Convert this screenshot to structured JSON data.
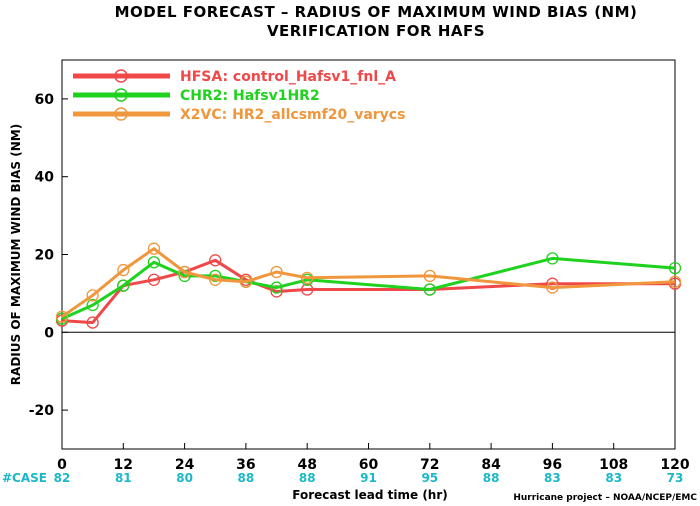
{
  "chart_data": {
    "type": "line",
    "title": "MODEL FORECAST – RADIUS OF MAXIMUM WIND BIAS (NM)",
    "subtitle": "VERIFICATION FOR HAFS",
    "xlabel": "Forecast lead time (hr)",
    "ylabel": "RADIUS OF MAXIMUM WIND BIAS (NM)",
    "xlim": [
      0,
      120
    ],
    "ylim": [
      -30,
      70
    ],
    "x_ticks": [
      0,
      12,
      24,
      36,
      48,
      60,
      72,
      84,
      96,
      108,
      120
    ],
    "y_ticks": [
      -20,
      0,
      20,
      40,
      60
    ],
    "grid": false,
    "zero_line": true,
    "legend_position": "top-left",
    "series": [
      {
        "name": "HFSA: control_Hafsv1_fnl_A",
        "color": "#f04848",
        "x": [
          0,
          6,
          12,
          18,
          24,
          30,
          36,
          42,
          48,
          72,
          96,
          120
        ],
        "y": [
          3,
          2.5,
          12,
          13.5,
          15.5,
          18.5,
          13.5,
          10.5,
          11,
          11,
          12.5,
          12.5
        ]
      },
      {
        "name": "CHR2: Hafsv1HR2",
        "color": "#1ed21e",
        "x": [
          0,
          6,
          12,
          18,
          24,
          30,
          36,
          42,
          48,
          72,
          96,
          120
        ],
        "y": [
          3.5,
          7,
          12,
          18,
          14.5,
          14.5,
          13,
          11.5,
          13.5,
          11,
          19,
          16.5
        ]
      },
      {
        "name": "X2VC: HR2_allcsmf20_varycs",
        "color": "#f0963c",
        "x": [
          0,
          6,
          12,
          18,
          24,
          30,
          36,
          42,
          48,
          72,
          96,
          120
        ],
        "y": [
          4,
          9.5,
          16,
          21.5,
          15.5,
          13.5,
          13,
          15.5,
          14,
          14.5,
          11.5,
          13
        ]
      }
    ],
    "case_label": "#CASE",
    "case_x": [
      0,
      12,
      24,
      36,
      48,
      60,
      72,
      84,
      96,
      108,
      120
    ],
    "case_counts": [
      82,
      81,
      80,
      88,
      88,
      91,
      95,
      88,
      83,
      83,
      73
    ],
    "credit": "Hurricane project – NOAA/NCEP/EMC"
  }
}
